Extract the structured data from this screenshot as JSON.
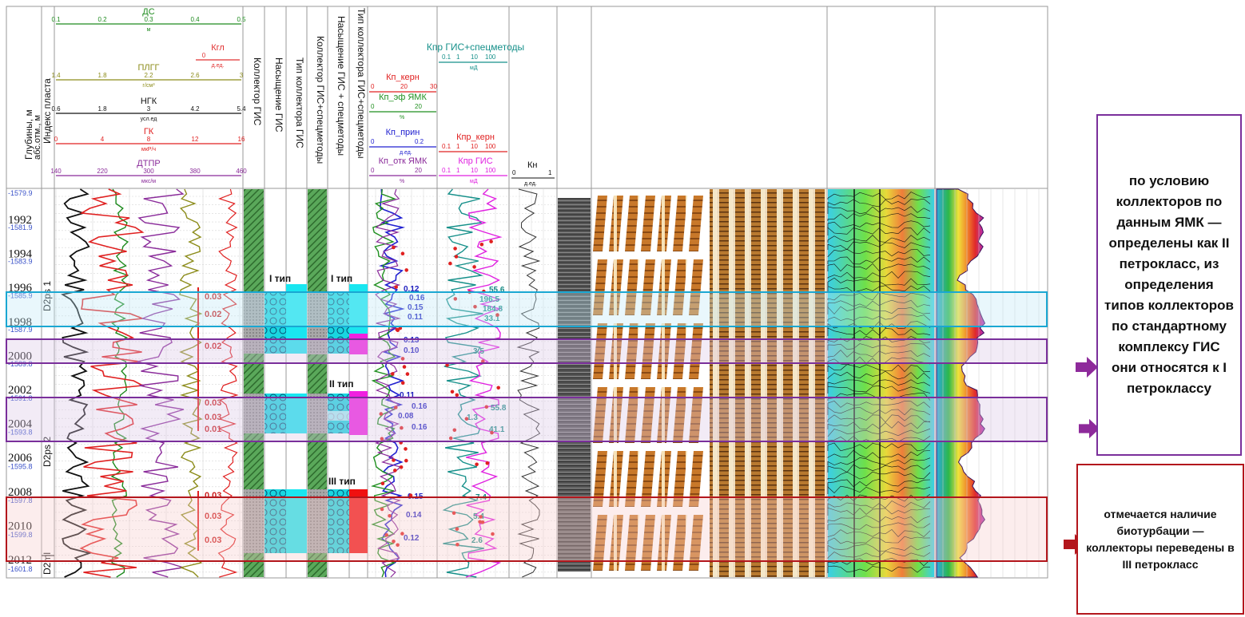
{
  "colors": {
    "ds": "#1d8a1d",
    "kgl": "#e03030",
    "pllg": "#8c8c1a",
    "ngk": "#111111",
    "gk": "#e02020",
    "dtpr": "#8a2b9a",
    "teal": "#16908a",
    "blue": "#2020d0",
    "green": "#1f8f1f",
    "magenta": "#e020e0",
    "cyan": "#19e6f0",
    "red_band": "#b3161c",
    "purple_band": "#7a2f9b",
    "blue_band": "#1aa7d2"
  },
  "depth_track": {
    "header_lines": [
      "Глубины, м",
      "абс.отм., м"
    ],
    "depths": [
      "1992",
      "1994",
      "1996",
      "1998",
      "2000",
      "2002",
      "2004",
      "2006",
      "2008",
      "2010",
      "2012"
    ],
    "abs_marks": [
      "-1579.9",
      "-1581.9",
      "-1583.9",
      "-1585.9",
      "-1587.9",
      "-1589.8",
      "-1591.8",
      "-1593.8",
      "-1595.8",
      "-1597.8",
      "-1599.8",
      "-1601.8"
    ]
  },
  "index_track": {
    "header": "Индекс пласта",
    "zones": [
      "D2ps 1",
      "D2ps 2",
      "D2ml"
    ]
  },
  "curve_scales": [
    {
      "name": "ДС",
      "unit": "м",
      "ticks": [
        "0.1",
        "0.2",
        "0.3",
        "0.4",
        "0.5"
      ],
      "color": "ds"
    },
    {
      "name": "Кгл",
      "unit": "д.ед.",
      "ticks": [
        "0"
      ],
      "color": "kgl"
    },
    {
      "name": "ПЛГГ",
      "unit": "г/см³",
      "ticks": [
        "1.4",
        "1.8",
        "2.2",
        "2.6",
        "3"
      ],
      "color": "pllg"
    },
    {
      "name": "НГК",
      "unit": "усл.ед",
      "ticks": [
        "0.6",
        "1.8",
        "3",
        "4.2",
        "5.4"
      ],
      "color": "ngk"
    },
    {
      "name": "ГК",
      "unit": "мкР/ч",
      "ticks": [
        "0",
        "4",
        "8",
        "12",
        "16"
      ],
      "color": "gk"
    },
    {
      "name": "ДТПР",
      "unit": "мкс/м",
      "ticks": [
        "140",
        "220",
        "300",
        "380",
        "460"
      ],
      "color": "dtpr"
    }
  ],
  "kgl_values": [
    "0.03",
    "0.02",
    "0.02",
    "0.03",
    "0.03",
    "0.01",
    "0.03",
    "0.03",
    "0.03"
  ],
  "column_headers": {
    "kollektor_gis": "Коллектор ГИС",
    "nasysh_gis": "Насыщение ГИС",
    "tip_gis": "Тип коллектора ГИС",
    "kollektor_spec": "Коллектор ГИС+спецметоды",
    "nasysh_spec": "Насыщение ГИС + спецметоды",
    "tip_spec": "Тип коллектора ГИС+спецметоды"
  },
  "type_labels": {
    "t1_gis": "I тип",
    "t1_spec": "I тип",
    "t2_spec": "II тип",
    "t3_spec": "III тип"
  },
  "porosity_scales": [
    {
      "name": "Кп_керн",
      "ticks": [
        "0",
        "20",
        "30"
      ],
      "unit": "",
      "color": "gk"
    },
    {
      "name": "Кп_эф ЯМК",
      "ticks": [
        "0",
        "20"
      ],
      "unit": "%",
      "color": "green"
    },
    {
      "name": "Кп_прин",
      "ticks": [
        "0",
        "0.2"
      ],
      "unit": "д.ед.",
      "color": "blue"
    },
    {
      "name": "Кп_отк ЯМК",
      "ticks": [
        "0",
        "20"
      ],
      "unit": "%",
      "color": "dtpr"
    }
  ],
  "porosity_values": [
    "0.12",
    "0.16",
    "0.15",
    "0.11",
    "0.13",
    "0.10",
    "0.11",
    "0.16",
    "0.08",
    "0.16",
    "0.15",
    "0.14",
    "0.12"
  ],
  "perm_scales": [
    {
      "name": "Кпр ГИС+спецметоды",
      "ticks": [
        "0.1",
        "1",
        "10",
        "100"
      ],
      "unit": "мД",
      "color": "teal"
    },
    {
      "name": "Кпр_керн",
      "ticks": [
        "0.1",
        "1",
        "10",
        "100"
      ],
      "unit": "",
      "color": "gk"
    },
    {
      "name": "Кпр ГИС",
      "ticks": [
        "0.1",
        "1",
        "10",
        "100"
      ],
      "unit": "мД",
      "color": "magenta"
    }
  ],
  "perm_values": [
    "55.6",
    "196.5",
    "184.8",
    "33.1",
    "3.5",
    "55.8",
    "1.3",
    "41.1",
    "7.4",
    "5.4",
    "2.6"
  ],
  "kn_scale": {
    "name": "Кн",
    "ticks": [
      "0",
      "1"
    ],
    "unit": "д.ед."
  },
  "notes": {
    "note1": "по условию коллекторов по данным ЯМК — определены как II петрокласс, из определения типов коллекторов по стандартному комплексу ГИС они относятся к I петроклассу",
    "note2": "отмечается наличие биотурбации — коллекторы переведены в III петрокласс"
  }
}
